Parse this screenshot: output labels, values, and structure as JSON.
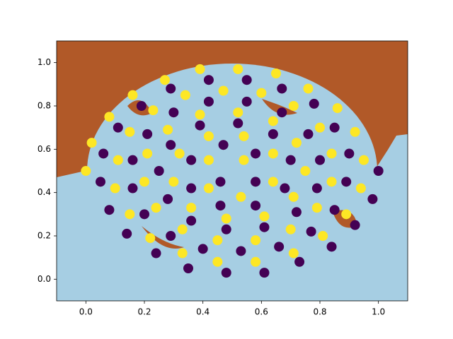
{
  "chart_data": {
    "type": "scatter",
    "xlim": [
      -0.1,
      1.1
    ],
    "ylim": [
      -0.1,
      1.1
    ],
    "xticks": [
      {
        "value": 0,
        "label": "0.0"
      },
      0.2,
      0.4,
      0.6,
      0.8,
      {
        "value": 1,
        "label": "1.0"
      }
    ],
    "yticks": [
      {
        "value": 0,
        "label": "0.0"
      },
      0.2,
      0.4,
      0.6,
      0.8,
      {
        "value": 1,
        "label": "1.0"
      }
    ],
    "series": [
      {
        "color": "#440154",
        "x": [
          0.46,
          0.58,
          0.58,
          0.47,
          0.36,
          0.36,
          0.46,
          0.58,
          0.68,
          0.7,
          0.64,
          0.52,
          0.39,
          0.29,
          0.25,
          0.28,
          0.36,
          0.48,
          0.61,
          0.72,
          0.79,
          0.8,
          0.76,
          0.67,
          0.55,
          0.42,
          0.3,
          0.21,
          0.16,
          0.16,
          0.2,
          0.29,
          0.4,
          0.53,
          0.66,
          0.77,
          0.85,
          0.89,
          0.9,
          0.85,
          0.78,
          0.67,
          0.55,
          0.42,
          0.29,
          0.19,
          0.11,
          0.06,
          0.05,
          0.08,
          0.14,
          0.24,
          0.35,
          0.48,
          0.61,
          0.73,
          0.84,
          0.92,
          0.98,
          1.0
        ],
        "y": [
          0.45,
          0.45,
          0.58,
          0.62,
          0.55,
          0.42,
          0.34,
          0.34,
          0.42,
          0.55,
          0.67,
          0.72,
          0.71,
          0.62,
          0.5,
          0.37,
          0.27,
          0.23,
          0.24,
          0.31,
          0.42,
          0.55,
          0.67,
          0.77,
          0.82,
          0.82,
          0.77,
          0.67,
          0.55,
          0.42,
          0.3,
          0.2,
          0.14,
          0.13,
          0.15,
          0.22,
          0.32,
          0.45,
          0.58,
          0.7,
          0.81,
          0.88,
          0.92,
          0.92,
          0.88,
          0.8,
          0.7,
          0.58,
          0.45,
          0.32,
          0.21,
          0.12,
          0.05,
          0.03,
          0.03,
          0.08,
          0.15,
          0.25,
          0.37,
          0.5
        ]
      },
      {
        "color": "#fde725",
        "x": [
          0.54,
          0.42,
          0.42,
          0.53,
          0.64,
          0.64,
          0.54,
          0.42,
          0.32,
          0.3,
          0.36,
          0.48,
          0.61,
          0.71,
          0.75,
          0.72,
          0.64,
          0.52,
          0.39,
          0.28,
          0.21,
          0.2,
          0.24,
          0.33,
          0.45,
          0.58,
          0.7,
          0.79,
          0.84,
          0.84,
          0.8,
          0.71,
          0.6,
          0.47,
          0.34,
          0.23,
          0.15,
          0.11,
          0.1,
          0.15,
          0.22,
          0.33,
          0.45,
          0.58,
          0.71,
          0.81,
          0.89,
          0.94,
          0.95,
          0.92,
          0.86,
          0.76,
          0.65,
          0.52,
          0.39,
          0.27,
          0.16,
          0.08,
          0.02,
          0.0
        ],
        "y": [
          0.55,
          0.55,
          0.42,
          0.38,
          0.45,
          0.58,
          0.66,
          0.66,
          0.58,
          0.45,
          0.33,
          0.28,
          0.29,
          0.38,
          0.5,
          0.63,
          0.73,
          0.77,
          0.76,
          0.69,
          0.58,
          0.45,
          0.33,
          0.23,
          0.18,
          0.18,
          0.23,
          0.33,
          0.45,
          0.58,
          0.7,
          0.8,
          0.86,
          0.87,
          0.85,
          0.78,
          0.68,
          0.55,
          0.42,
          0.3,
          0.19,
          0.12,
          0.08,
          0.08,
          0.12,
          0.2,
          0.3,
          0.42,
          0.55,
          0.68,
          0.79,
          0.88,
          0.95,
          0.97,
          0.97,
          0.92,
          0.85,
          0.75,
          0.63,
          0.5
        ]
      }
    ]
  }
}
